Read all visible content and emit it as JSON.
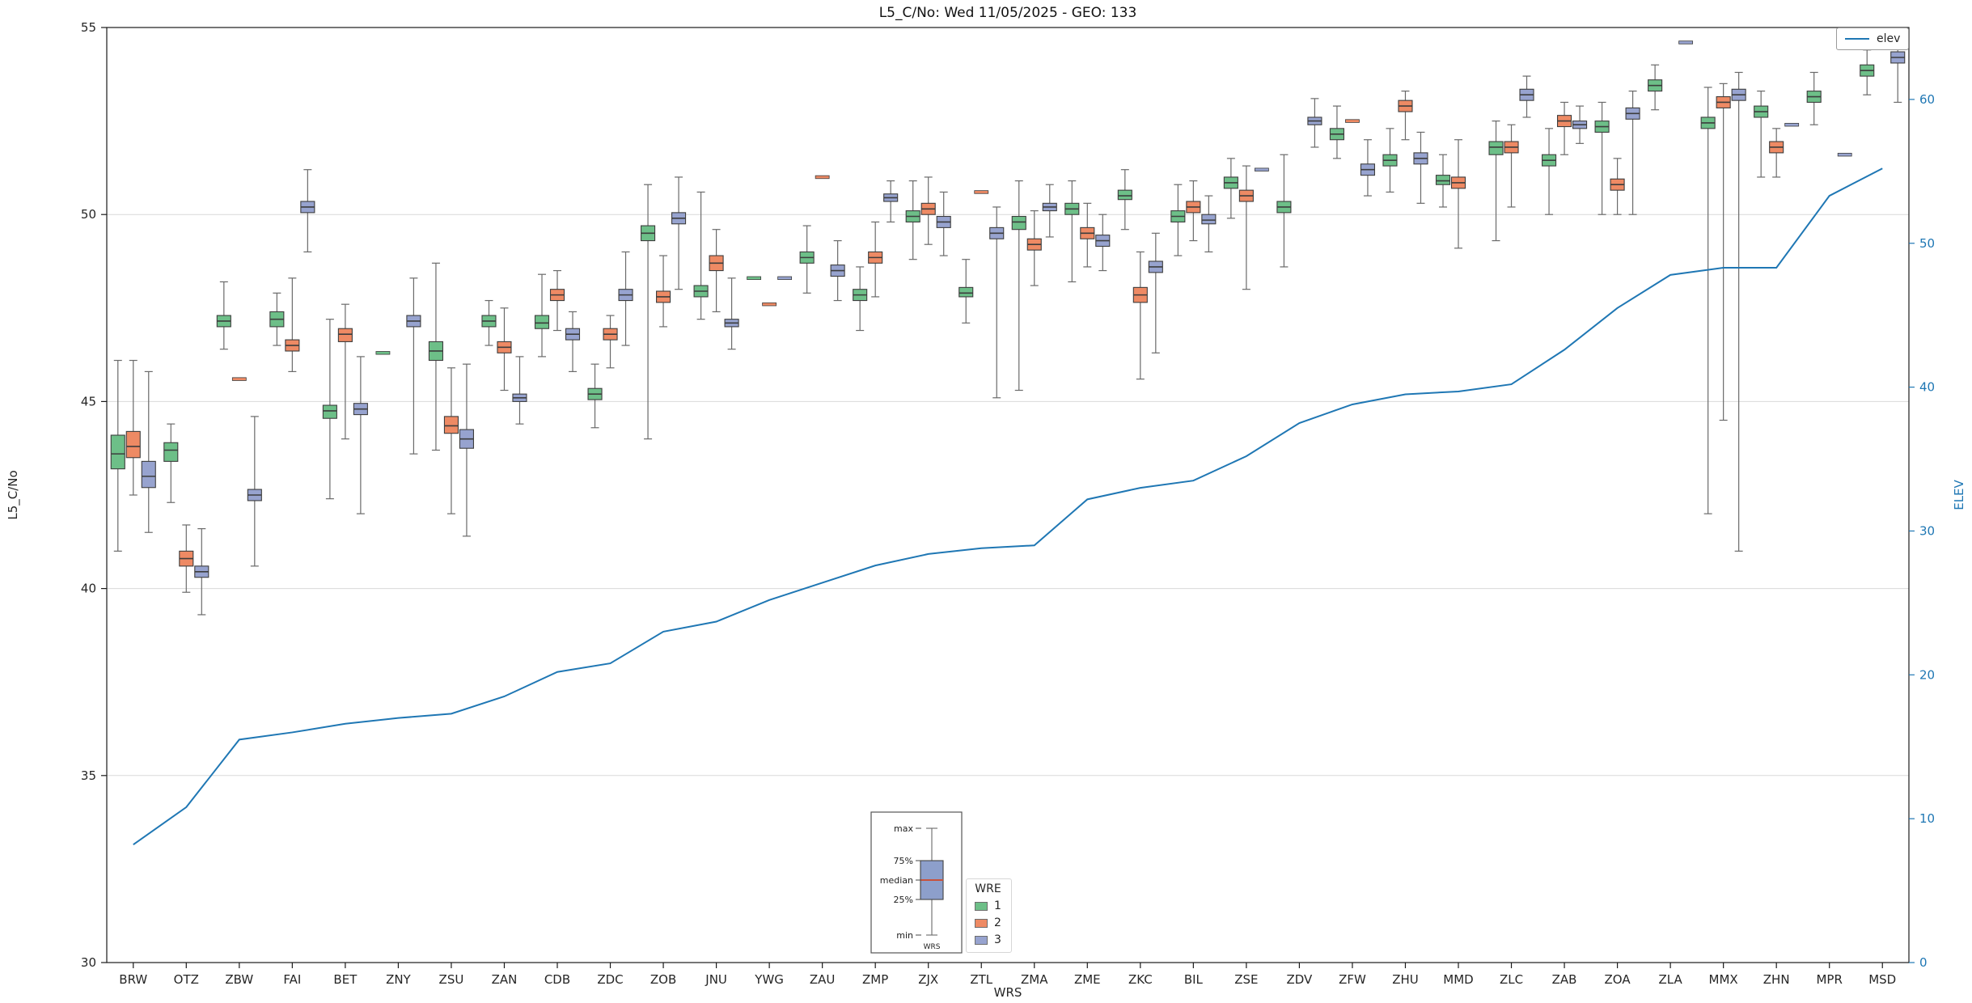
{
  "chart_data": {
    "type": "boxplot",
    "title": "L5_C/No: Wed 11/05/2025 - GEO: 133",
    "xlabel": "WRS",
    "ylabel": "L5_C/No",
    "y2label": "ELEV",
    "ylim": [
      30,
      55
    ],
    "y2lim": [
      0,
      65
    ],
    "yticks": [
      30,
      35,
      40,
      45,
      50,
      55
    ],
    "y2ticks": [
      0,
      10,
      20,
      30,
      40,
      50,
      60
    ],
    "grid": true,
    "legend_position": "upper right",
    "wre_legend_title": "WRE",
    "categories": [
      "BRW",
      "OTZ",
      "ZBW",
      "FAI",
      "BET",
      "ZNY",
      "ZSU",
      "ZAN",
      "CDB",
      "ZDC",
      "ZOB",
      "JNU",
      "YWG",
      "ZAU",
      "ZMP",
      "ZJX",
      "ZTL",
      "ZMA",
      "ZME",
      "ZKC",
      "BIL",
      "ZSE",
      "ZDV",
      "ZFW",
      "ZHU",
      "MMD",
      "ZLC",
      "ZAB",
      "ZOA",
      "ZLA",
      "MMX",
      "ZHN",
      "MPR",
      "MSD"
    ],
    "box_format": [
      "whisker_low",
      "q1",
      "median",
      "q3",
      "whisker_high"
    ],
    "series": [
      {
        "name": "1",
        "color": "#6dbf88",
        "boxes": [
          [
            41.0,
            43.2,
            43.6,
            44.1,
            46.1
          ],
          [
            42.3,
            43.4,
            43.7,
            43.9,
            44.4
          ],
          [
            46.4,
            47.0,
            47.15,
            47.3,
            48.2
          ],
          [
            46.5,
            47.0,
            47.2,
            47.4,
            47.9
          ],
          [
            42.4,
            44.55,
            44.75,
            44.9,
            47.2
          ],
          [
            46.3,
            46.3,
            46.3,
            46.3,
            46.3
          ],
          [
            43.7,
            46.1,
            46.35,
            46.6,
            48.7
          ],
          [
            46.5,
            47.0,
            47.15,
            47.3,
            47.7
          ],
          [
            46.2,
            46.95,
            47.1,
            47.3,
            48.4
          ],
          [
            44.3,
            45.05,
            45.2,
            45.35,
            46.0
          ],
          [
            44.0,
            49.3,
            49.5,
            49.7,
            50.8
          ],
          [
            47.2,
            47.8,
            47.95,
            48.1,
            50.6
          ],
          [
            48.3,
            48.3,
            48.3,
            48.3,
            48.3
          ],
          [
            47.9,
            48.7,
            48.85,
            49.0,
            49.7
          ],
          [
            46.9,
            47.7,
            47.85,
            48.0,
            48.6
          ],
          [
            48.8,
            49.8,
            49.95,
            50.1,
            50.9
          ],
          [
            47.1,
            47.8,
            47.9,
            48.05,
            48.8
          ],
          [
            45.3,
            49.6,
            49.8,
            49.95,
            50.9
          ],
          [
            48.2,
            50.0,
            50.15,
            50.3,
            50.9
          ],
          [
            49.6,
            50.4,
            50.5,
            50.65,
            51.2
          ],
          [
            48.9,
            49.8,
            49.95,
            50.1,
            50.8
          ],
          [
            49.9,
            50.7,
            50.85,
            51.0,
            51.5
          ],
          [
            48.6,
            50.05,
            50.2,
            50.35,
            51.6
          ],
          [
            51.5,
            52.0,
            52.15,
            52.3,
            52.9
          ],
          [
            50.6,
            51.3,
            51.45,
            51.6,
            52.3
          ],
          [
            50.2,
            50.8,
            50.9,
            51.05,
            51.6
          ],
          [
            49.3,
            51.6,
            51.8,
            51.95,
            52.5
          ],
          [
            50.0,
            51.3,
            51.45,
            51.6,
            52.3
          ],
          [
            50.0,
            52.2,
            52.35,
            52.5,
            53.0
          ],
          [
            52.8,
            53.3,
            53.45,
            53.6,
            54.0
          ],
          [
            42.0,
            52.3,
            52.45,
            52.6,
            53.4
          ],
          [
            51.0,
            52.6,
            52.75,
            52.9,
            53.3
          ],
          [
            52.4,
            53.0,
            53.15,
            53.3,
            53.8
          ],
          [
            53.2,
            53.7,
            53.85,
            54.0,
            54.4
          ]
        ]
      },
      {
        "name": "2",
        "color": "#ee8a64",
        "boxes": [
          [
            42.5,
            43.5,
            43.8,
            44.2,
            46.1
          ],
          [
            39.9,
            40.6,
            40.8,
            41.0,
            41.7
          ],
          [
            45.6,
            45.6,
            45.6,
            45.6,
            45.6
          ],
          [
            45.8,
            46.35,
            46.5,
            46.65,
            48.3
          ],
          [
            44.0,
            46.6,
            46.8,
            46.95,
            47.6
          ],
          null,
          [
            42.0,
            44.15,
            44.35,
            44.6,
            45.9
          ],
          [
            45.3,
            46.3,
            46.45,
            46.6,
            47.5
          ],
          [
            46.9,
            47.7,
            47.85,
            48.0,
            48.5
          ],
          [
            45.9,
            46.65,
            46.8,
            46.95,
            47.3
          ],
          [
            47.0,
            47.65,
            47.8,
            47.95,
            48.9
          ],
          [
            47.4,
            48.5,
            48.7,
            48.9,
            49.6
          ],
          [
            47.6,
            47.6,
            47.6,
            47.6,
            47.6
          ],
          [
            51.0,
            51.0,
            51.0,
            51.0,
            51.0
          ],
          [
            47.8,
            48.7,
            48.85,
            49.0,
            49.8
          ],
          [
            49.2,
            50.0,
            50.15,
            50.3,
            51.0
          ],
          [
            50.6,
            50.6,
            50.6,
            50.6,
            50.6
          ],
          [
            48.1,
            49.05,
            49.2,
            49.35,
            50.1
          ],
          [
            48.6,
            49.35,
            49.5,
            49.65,
            50.3
          ],
          [
            45.6,
            47.65,
            47.85,
            48.05,
            49.0
          ],
          [
            49.3,
            50.05,
            50.2,
            50.35,
            50.9
          ],
          [
            48.0,
            50.35,
            50.5,
            50.65,
            51.3
          ],
          null,
          [
            52.5,
            52.5,
            52.5,
            52.5,
            52.5
          ],
          [
            52.0,
            52.75,
            52.9,
            53.05,
            53.3
          ],
          [
            49.1,
            50.7,
            50.85,
            51.0,
            52.0
          ],
          [
            50.2,
            51.65,
            51.8,
            51.95,
            52.4
          ],
          [
            51.6,
            52.35,
            52.5,
            52.65,
            53.0
          ],
          [
            50.0,
            50.65,
            50.8,
            50.95,
            51.5
          ],
          null,
          [
            44.5,
            52.85,
            53.0,
            53.15,
            53.5
          ],
          [
            51.0,
            51.65,
            51.8,
            51.95,
            52.3
          ],
          null,
          null
        ]
      },
      {
        "name": "3",
        "color": "#97a3cf",
        "boxes": [
          [
            41.5,
            42.7,
            43.0,
            43.4,
            45.8
          ],
          [
            39.3,
            40.3,
            40.45,
            40.6,
            41.6
          ],
          [
            40.6,
            42.35,
            42.5,
            42.65,
            44.6
          ],
          [
            49.0,
            50.05,
            50.2,
            50.35,
            51.2
          ],
          [
            42.0,
            44.65,
            44.8,
            44.95,
            46.2
          ],
          [
            43.6,
            47.0,
            47.15,
            47.3,
            48.3
          ],
          [
            41.4,
            43.75,
            44.0,
            44.25,
            46.0
          ],
          [
            44.4,
            45.0,
            45.1,
            45.2,
            46.2
          ],
          [
            45.8,
            46.65,
            46.8,
            46.95,
            47.4
          ],
          [
            46.5,
            47.7,
            47.85,
            48.0,
            49.0
          ],
          [
            48.0,
            49.75,
            49.9,
            50.05,
            51.0
          ],
          [
            46.4,
            47.0,
            47.1,
            47.2,
            48.3
          ],
          [
            48.3,
            48.3,
            48.3,
            48.3,
            48.3
          ],
          [
            47.7,
            48.35,
            48.5,
            48.65,
            49.3
          ],
          [
            49.8,
            50.35,
            50.45,
            50.55,
            50.9
          ],
          [
            48.9,
            49.65,
            49.8,
            49.95,
            50.6
          ],
          [
            45.1,
            49.35,
            49.5,
            49.65,
            50.2
          ],
          [
            49.4,
            50.1,
            50.2,
            50.3,
            50.8
          ],
          [
            48.5,
            49.15,
            49.3,
            49.45,
            50.0
          ],
          [
            46.3,
            48.45,
            48.6,
            48.75,
            49.5
          ],
          [
            49.0,
            49.75,
            49.85,
            50.0,
            50.5
          ],
          [
            51.2,
            51.2,
            51.2,
            51.2,
            51.2
          ],
          [
            51.8,
            52.4,
            52.5,
            52.6,
            53.1
          ],
          [
            50.5,
            51.05,
            51.2,
            51.35,
            52.0
          ],
          [
            50.3,
            51.35,
            51.5,
            51.65,
            52.2
          ],
          null,
          [
            52.6,
            53.05,
            53.2,
            53.35,
            53.7
          ],
          [
            51.9,
            52.3,
            52.4,
            52.5,
            52.9
          ],
          [
            50.0,
            52.55,
            52.7,
            52.85,
            53.3
          ],
          [
            54.6,
            54.6,
            54.6,
            54.6,
            54.6
          ],
          [
            41.0,
            53.05,
            53.2,
            53.35,
            53.8
          ],
          [
            52.4,
            52.4,
            52.4,
            52.4,
            52.4
          ],
          [
            51.6,
            51.6,
            51.6,
            51.6,
            51.6
          ],
          [
            53.0,
            54.05,
            54.2,
            54.35,
            54.9
          ]
        ]
      }
    ],
    "elev_line": {
      "name": "elev",
      "color": "#1f77b4",
      "values": [
        8.2,
        10.8,
        15.5,
        16.0,
        16.6,
        17.0,
        17.3,
        18.5,
        20.2,
        20.8,
        23.0,
        23.7,
        25.2,
        26.4,
        27.6,
        28.4,
        28.8,
        29.0,
        32.2,
        33.0,
        33.5,
        35.2,
        37.5,
        38.8,
        39.5,
        39.7,
        40.2,
        42.6,
        45.5,
        47.8,
        48.3,
        48.3,
        53.3,
        55.2
      ]
    },
    "inset_legend": {
      "labels": [
        "max",
        "75%",
        "median",
        "25%",
        "min"
      ],
      "xlabel": "WRS",
      "box_color": "#8d9fcb",
      "median_color": "#c8523c"
    }
  }
}
